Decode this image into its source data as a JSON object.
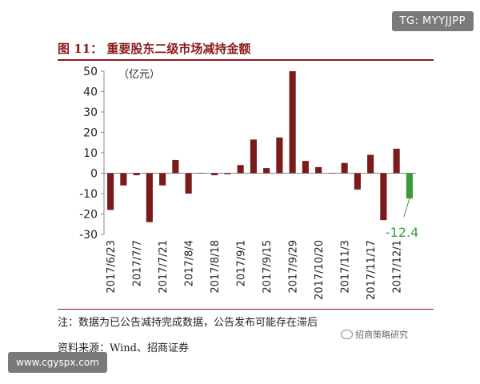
{
  "badge_top": "TG: MYYJJPP",
  "title": "图 11：  重要股东二级市场减持金额",
  "unit_label": "（亿元）",
  "note": "注：数据为已公告减持完成数据，公告发布可能存在滞后",
  "source": "资料来源：Wind、招商证券",
  "watermark": "招商策略研究",
  "badge_bottom": "www.cgyspx.com",
  "chart_data": {
    "type": "bar",
    "title": "重要股东二级市场减持金额",
    "ylabel": "（亿元）",
    "ylim": [
      -30,
      50
    ],
    "yticks": [
      50,
      40,
      30,
      20,
      10,
      0,
      -10,
      -20,
      -30
    ],
    "tick_labels": [
      "2017/6/23",
      "2017/7/7",
      "2017/7/21",
      "2017/8/4",
      "2017/8/18",
      "2017/9/1",
      "2017/9/15",
      "2017/9/29",
      "2017/10/20",
      "2017/11/3",
      "2017/11/17",
      "2017/12/1"
    ],
    "values": [
      -18,
      -6,
      -1,
      -24,
      -6,
      6.5,
      -10,
      0,
      -1,
      -0.5,
      4,
      16.5,
      2.5,
      17.5,
      50,
      6,
      3,
      0,
      5,
      -8,
      9,
      -23,
      12,
      -12.4
    ],
    "colors": {
      "default": "#7b1a1a",
      "highlight": "#3a9a3a"
    },
    "highlight_index": 23,
    "annotation": "-12.4",
    "grid": false
  }
}
